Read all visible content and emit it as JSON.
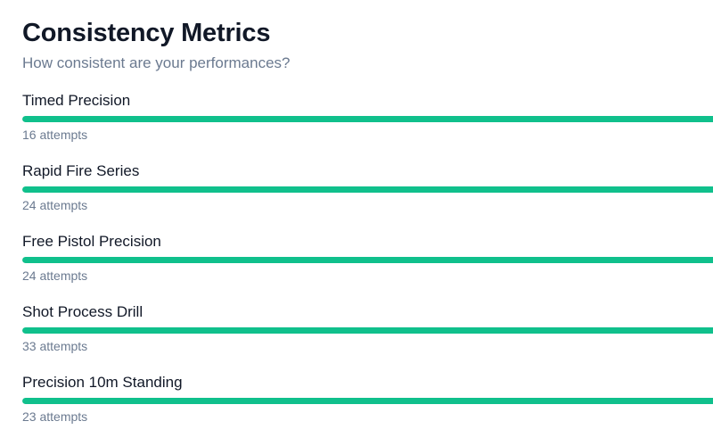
{
  "header": {
    "title": "Consistency Metrics",
    "subtitle": "How consistent are your performances?"
  },
  "colors": {
    "bar_fill": "#10c08c",
    "bar_track": "#e5e7eb",
    "title": "#111827",
    "muted": "#6b7a90"
  },
  "metrics": [
    {
      "name": "Timed Precision",
      "attempts_label": "16 attempts",
      "consistency_fraction": 1.0
    },
    {
      "name": "Rapid Fire Series",
      "attempts_label": "24 attempts",
      "consistency_fraction": 1.0
    },
    {
      "name": "Free Pistol Precision",
      "attempts_label": "24 attempts",
      "consistency_fraction": 1.0
    },
    {
      "name": "Shot Process Drill",
      "attempts_label": "33 attempts",
      "consistency_fraction": 1.0
    },
    {
      "name": "Precision 10m Standing",
      "attempts_label": "23 attempts",
      "consistency_fraction": 1.0
    }
  ]
}
